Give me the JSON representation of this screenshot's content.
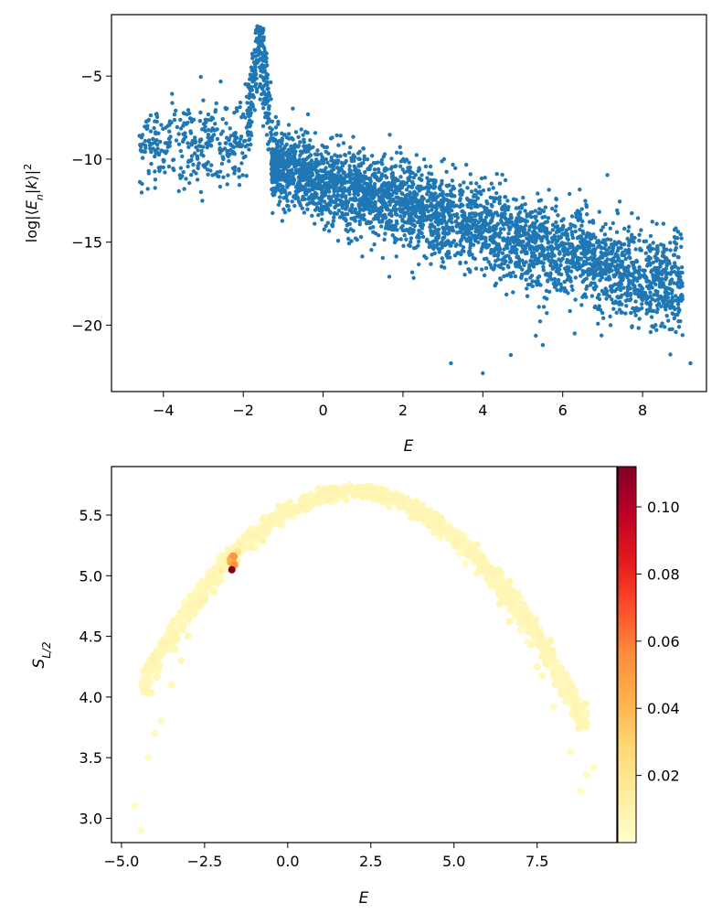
{
  "chart_data": [
    {
      "type": "scatter",
      "xlabel": "E",
      "ylabel": "log|⟨E_n|k⟩|²",
      "xlim": [
        -5.3,
        9.6
      ],
      "ylim": [
        -24,
        -1.3
      ],
      "xticks": [
        -4,
        -2,
        0,
        2,
        4,
        6,
        8
      ],
      "yticks": [
        -5,
        -10,
        -15,
        -20
      ],
      "grid": false,
      "color": "#1f77b4",
      "point_count": 4000,
      "series": [
        {
          "x": [
            -4.6,
            -4.4,
            -4.2,
            -4.0,
            -3.8,
            -3.5,
            -3.2,
            -3.0,
            -2.8,
            -2.5,
            -2.2,
            -2.0,
            -1.8,
            -1.7,
            -1.6,
            -1.5,
            -1.4,
            -1.2,
            -1.0,
            -0.5,
            0.0,
            0.5,
            1.0,
            1.5,
            2.0,
            2.5,
            3.0,
            3.5,
            4.0,
            4.5,
            5.0,
            5.5,
            6.0,
            6.5,
            7.0,
            7.5,
            8.0,
            8.5,
            9.0,
            9.2,
            3.2,
            4.0,
            4.7,
            5.5,
            6.3,
            7.2,
            8.1
          ],
          "y": [
            -8.6,
            -8.0,
            -9.5,
            -10.5,
            -7.8,
            -8.5,
            -9.0,
            -9.8,
            -8.3,
            -10.0,
            -8.8,
            -7.3,
            -5.0,
            -4.4,
            -2.2,
            -4.5,
            -5.5,
            -8.5,
            -10.3,
            -10.8,
            -11.2,
            -11.8,
            -12.3,
            -12.6,
            -13.0,
            -13.3,
            -13.6,
            -14.0,
            -14.4,
            -14.8,
            -15.2,
            -15.6,
            -16.0,
            -16.4,
            -16.8,
            -17.3,
            -17.8,
            -18.5,
            -20.6,
            -22.3,
            -22.3,
            -22.9,
            -21.8,
            -21.2,
            -20.5,
            -20.0,
            -19.3
          ]
        }
      ]
    },
    {
      "type": "scatter",
      "xlabel": "E",
      "ylabel": "S_L/2",
      "xlim": [
        -5.3,
        9.9
      ],
      "ylim": [
        2.8,
        5.9
      ],
      "xticks": [
        -5.0,
        -2.5,
        0.0,
        2.5,
        5.0,
        7.5
      ],
      "yticks": [
        3.0,
        3.5,
        4.0,
        4.5,
        5.0,
        5.5
      ],
      "grid": false,
      "colormap": "YlOrRd",
      "colorbar": {
        "min": 0.0,
        "max": 0.112,
        "ticks": [
          0.02,
          0.04,
          0.06,
          0.08,
          0.1
        ]
      },
      "series": [
        {
          "x": [
            -4.6,
            -4.4,
            -4.2,
            -4.0,
            -3.8,
            -3.5,
            -3.2,
            -3.0,
            -2.5,
            -2.0,
            -1.7,
            -1.5,
            -1.0,
            -0.5,
            0.0,
            0.5,
            1.0,
            1.5,
            2.0,
            2.5,
            3.0,
            3.5,
            4.0,
            4.5,
            5.0,
            5.5,
            6.0,
            6.5,
            7.0,
            7.5,
            8.0,
            8.5,
            8.8,
            9.0,
            9.2,
            -1.68,
            -1.62
          ],
          "y": [
            3.1,
            2.9,
            3.5,
            3.7,
            3.8,
            4.1,
            4.3,
            4.5,
            4.8,
            5.05,
            5.15,
            5.2,
            5.33,
            5.44,
            5.53,
            5.6,
            5.66,
            5.7,
            5.72,
            5.71,
            5.68,
            5.62,
            5.54,
            5.44,
            5.32,
            5.17,
            4.98,
            4.78,
            4.55,
            4.25,
            3.92,
            3.55,
            3.22,
            3.36,
            3.42,
            5.05,
            5.16
          ],
          "c": [
            0.003,
            0.002,
            0.003,
            0.004,
            0.004,
            0.005,
            0.006,
            0.006,
            0.008,
            0.012,
            0.03,
            0.02,
            0.01,
            0.007,
            0.006,
            0.005,
            0.005,
            0.004,
            0.004,
            0.004,
            0.004,
            0.004,
            0.004,
            0.004,
            0.004,
            0.004,
            0.004,
            0.004,
            0.004,
            0.004,
            0.003,
            0.003,
            0.003,
            0.003,
            0.003,
            0.112,
            0.05
          ]
        }
      ]
    }
  ]
}
